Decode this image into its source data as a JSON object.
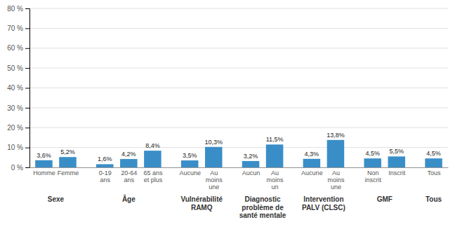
{
  "chart_data": {
    "type": "bar",
    "categories": [
      "Homme",
      "Femme",
      "0-19\nans",
      "20-64\nans",
      "65 ans\net plus",
      "Aucune",
      "Au\nmoins\nune",
      "Aucun",
      "Au\nmoins\nun",
      "Aucune",
      "Au\nmoins\nune",
      "Non\ninscrit",
      "Inscrit",
      "Tous"
    ],
    "groups": [
      "Sexe",
      "Sexe",
      "Âge",
      "Âge",
      "Âge",
      "Vulnérabilité\nRAMQ",
      "Vulnérabilité\nRAMQ",
      "Diagnostic\nproblème de\nsanté mentale",
      "Diagnostic\nproblème de\nsanté mentale",
      "Intervention\nPALV (CLSC)",
      "Intervention\nPALV (CLSC)",
      "GMF",
      "GMF",
      "Tous"
    ],
    "values": [
      3.6,
      5.2,
      1.6,
      4.2,
      8.4,
      3.5,
      10.3,
      3.2,
      11.5,
      4.3,
      13.8,
      4.5,
      5.5,
      4.5
    ],
    "value_labels": [
      "3,6%",
      "5,2%",
      "1,6%",
      "4,2%",
      "8,4%",
      "3,5%",
      "10,3%",
      "3,2%",
      "11,5%",
      "4,3%",
      "13,8%",
      "4,5%",
      "5,5%",
      "4,5%"
    ],
    "data_labels": true,
    "color": "#3A8EC8",
    "ylim": [
      0,
      80
    ],
    "yticks": [
      {
        "value": 0,
        "label": "0 %"
      },
      {
        "value": 10,
        "label": "10 %"
      },
      {
        "value": 20,
        "label": "20 %"
      },
      {
        "value": 30,
        "label": "30 %"
      },
      {
        "value": 40,
        "label": "40 %"
      },
      {
        "value": 50,
        "label": "50 %"
      },
      {
        "value": 60,
        "label": "60 %"
      },
      {
        "value": 70,
        "label": "70 %"
      },
      {
        "value": 80,
        "label": "80 %"
      }
    ],
    "grid": true
  }
}
